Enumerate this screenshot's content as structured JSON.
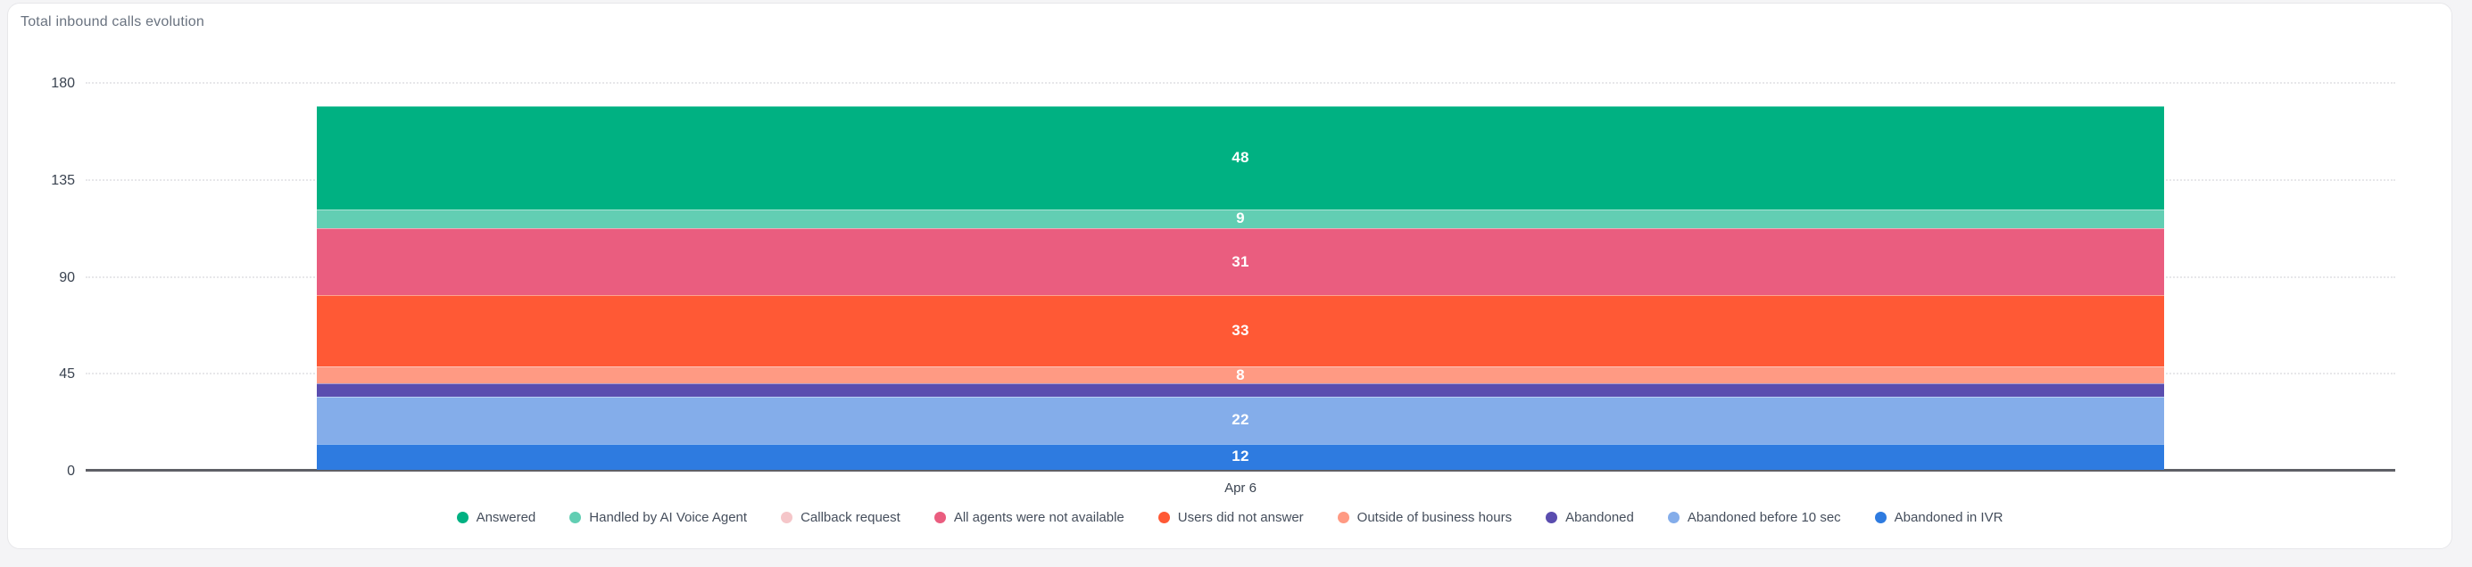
{
  "page": {
    "background": "#f4f4f6"
  },
  "card": {
    "title": "Total inbound calls evolution",
    "background": "#ffffff",
    "border_color": "#e7e7ea"
  },
  "chart_data": {
    "type": "bar",
    "stacked": true,
    "title": "Total inbound calls evolution",
    "categories": [
      "Apr 6"
    ],
    "series": [
      {
        "name": "Answered",
        "values": [
          48
        ],
        "color": "#00b182",
        "show_label": true
      },
      {
        "name": "Handled by AI Voice Agent",
        "values": [
          9
        ],
        "color": "#62ceb3",
        "show_label": true
      },
      {
        "name": "Callback request",
        "values": [
          0
        ],
        "color": "#f5c6c9",
        "show_label": false
      },
      {
        "name": "All agents were not available",
        "values": [
          31
        ],
        "color": "#ea5d7f",
        "show_label": true
      },
      {
        "name": "Users did not answer",
        "values": [
          33
        ],
        "color": "#ff5935",
        "show_label": true
      },
      {
        "name": "Outside of business hours",
        "values": [
          8
        ],
        "color": "#ff9a83",
        "show_label": true
      },
      {
        "name": "Abandoned",
        "values": [
          6
        ],
        "color": "#5a4daf",
        "show_label": false
      },
      {
        "name": "Abandoned before 10 sec",
        "values": [
          22
        ],
        "color": "#84adea",
        "show_label": true
      },
      {
        "name": "Abandoned in IVR",
        "values": [
          12
        ],
        "color": "#2e7be0",
        "show_label": true
      }
    ],
    "stack_order_top_to_bottom": [
      "Answered",
      "Handled by AI Voice Agent",
      "Callback request",
      "All agents were not available",
      "Users did not answer",
      "Outside of business hours",
      "Abandoned",
      "Abandoned before 10 sec",
      "Abandoned in IVR"
    ],
    "ylim": [
      0,
      180
    ],
    "yticks": [
      0,
      45,
      90,
      135,
      180
    ],
    "xlabel": "",
    "ylabel": "",
    "grid": "horizontal dotted",
    "legend_position": "bottom"
  },
  "axis": {
    "tick_color": "#3a4350",
    "grid_color": "#e7e7ea",
    "baseline_color": "#5f6066"
  },
  "legend": {
    "text_color": "#454e5c"
  }
}
